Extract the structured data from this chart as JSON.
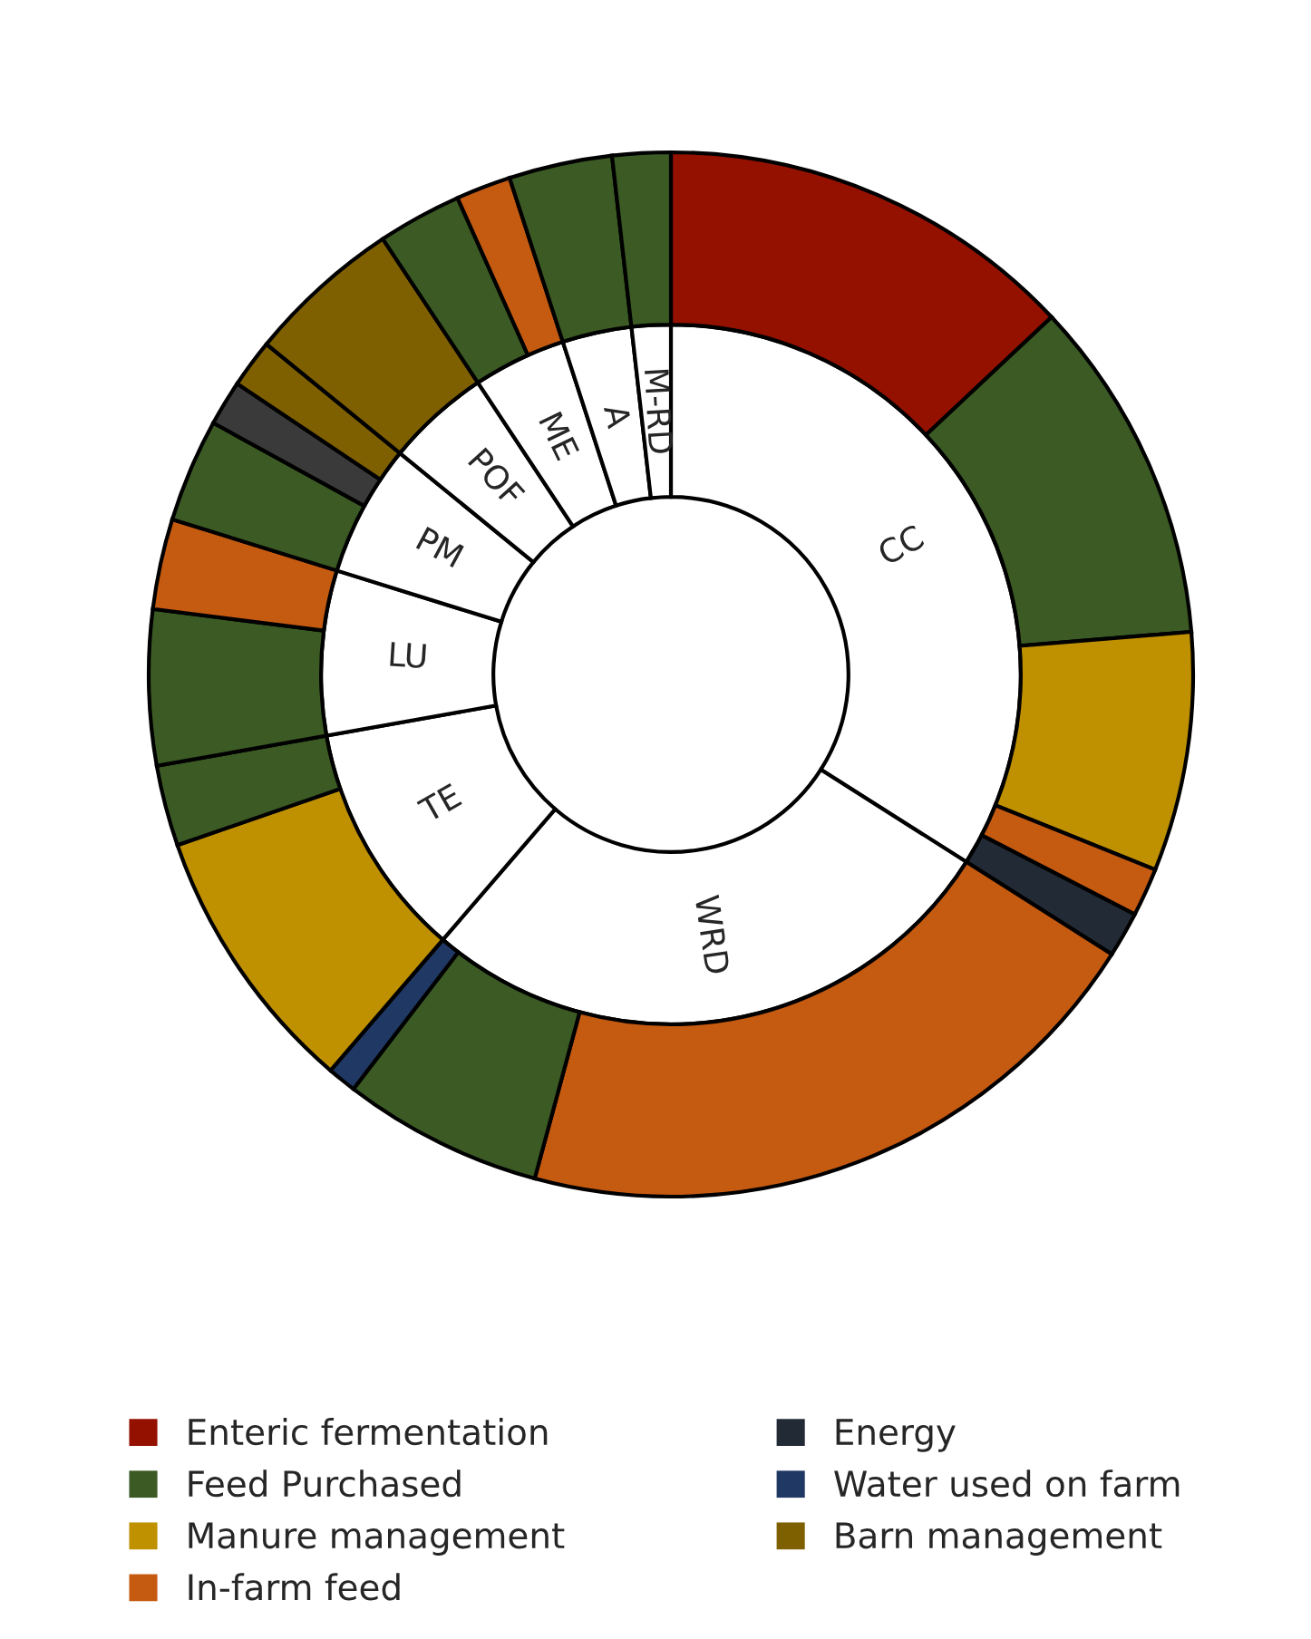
{
  "chart_data": {
    "type": "donut",
    "legend": "bottom",
    "categories": [
      "Enteric fermentation",
      "Feed Purchased",
      "Manure management",
      "In-farm feed",
      "Energy",
      null,
      null,
      "Water used on farm",
      null,
      null,
      null,
      null,
      null,
      null,
      "Barn management",
      null,
      null,
      null,
      null,
      null
    ],
    "series": [
      {
        "values": [
          34.0,
          null,
          null,
          null,
          null,
          27.3,
          null,
          null,
          10.9,
          null,
          7.6,
          null,
          6.1,
          null,
          null,
          4.8,
          4.3,
          null,
          3.2,
          1.8
        ],
        "color": "#ffffff"
      },
      {
        "values": [
          13.0,
          10.7,
          7.4,
          1.5,
          1.4,
          20.2,
          6.2,
          0.9,
          8.4,
          2.5,
          4.8,
          2.8,
          3.2,
          1.4,
          1.5,
          4.8,
          2.6,
          1.7,
          3.2,
          1.8
        ],
        "colors": [
          "#941100",
          "#3b5a24",
          "#bf9000",
          "#c55a11",
          "#222a35",
          "#c55a11",
          "#3b5a24",
          "#203864",
          "#bf9000",
          "#3b5a24",
          "#3b5a24",
          "#c55a11",
          "#3b5a24",
          "#3a3a3a",
          "#7f6000",
          "#7f6000",
          "#3b5a24",
          "#c55a11",
          "#3b5a24",
          "#3b5a24"
        ]
      }
    ],
    "annotations": [
      "CC",
      "WRD",
      "TE",
      "LU",
      "PM",
      "POF",
      "ME",
      "A",
      "M-RD"
    ]
  }
}
